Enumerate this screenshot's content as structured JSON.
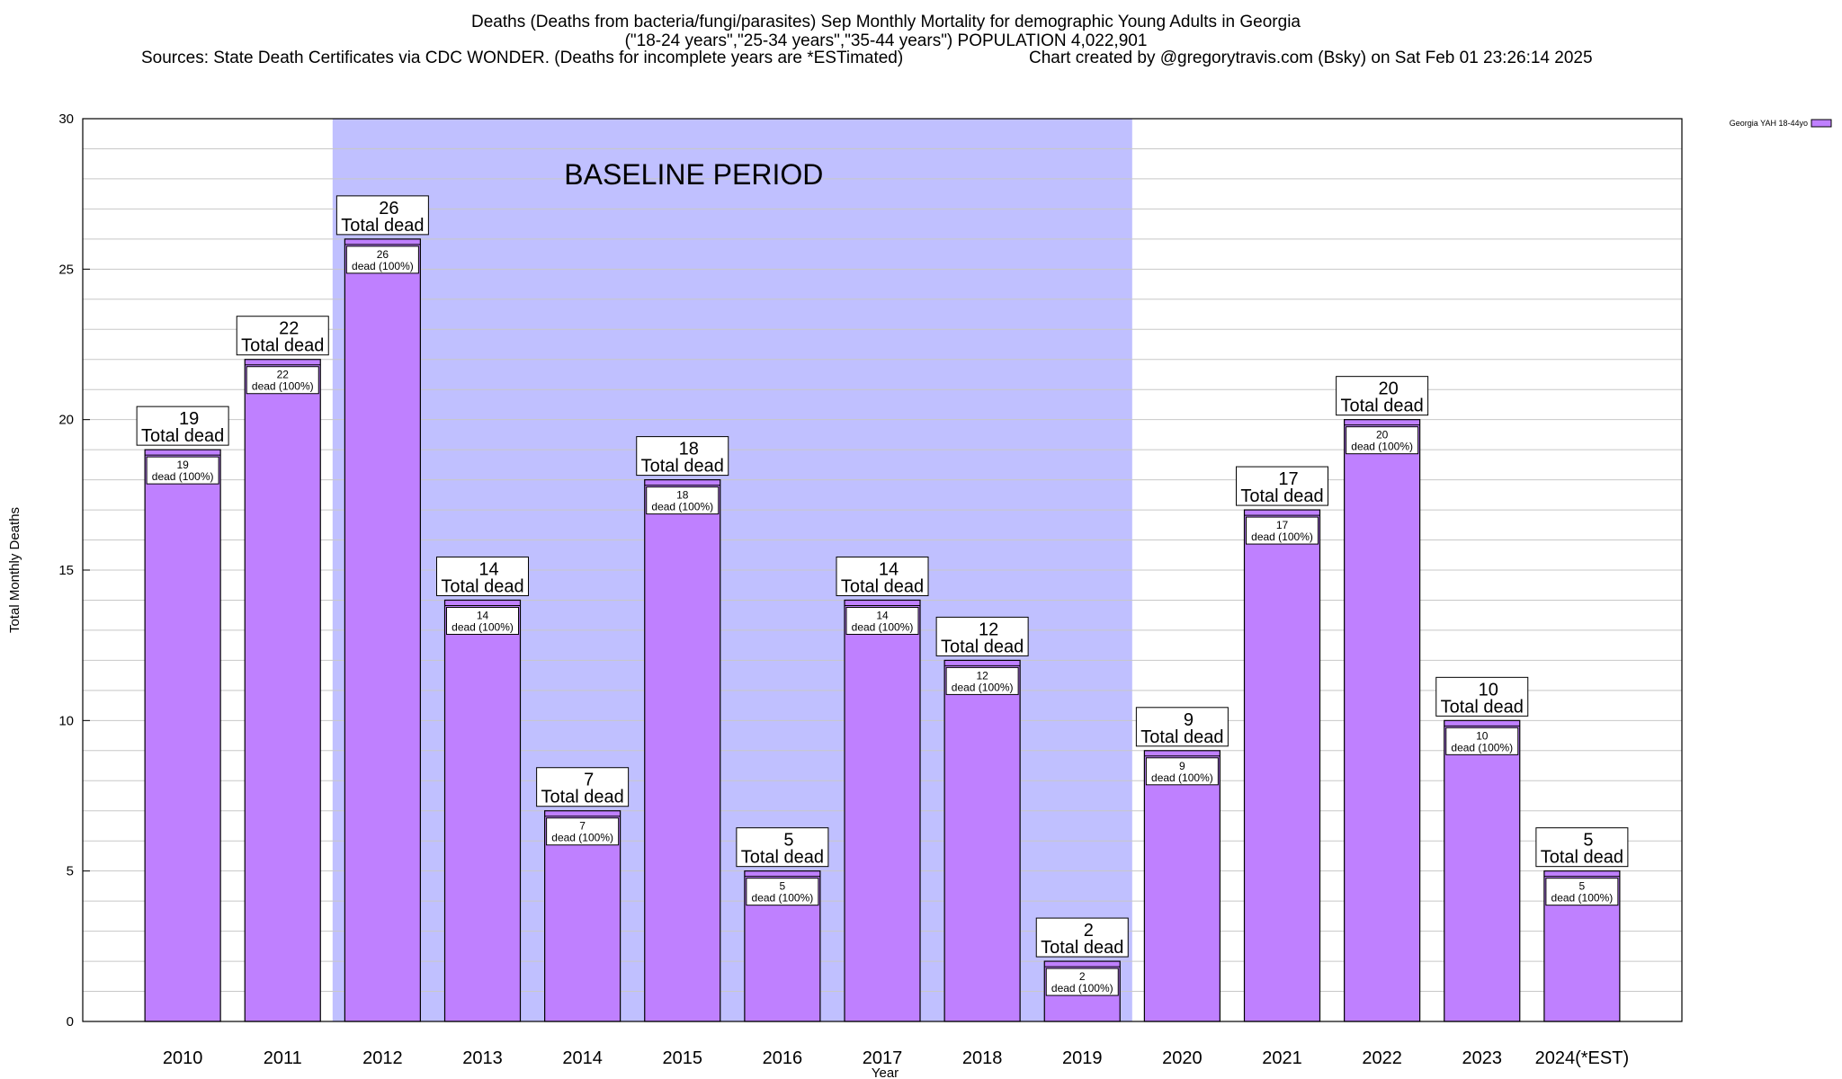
{
  "chart_data": {
    "type": "bar",
    "title_line1": "Deaths (Deaths from bacteria/fungi/parasites) Sep Monthly Mortality for demographic Young Adults in Georgia",
    "title_line2": "(\"18-24 years\",\"25-34 years\",\"35-44 years\") POPULATION 4,022,901",
    "source_text": "Sources: State Death Certificates via CDC WONDER. (Deaths for incomplete years are *ESTimated)",
    "credit_text": "Chart created by @gregorytravis.com (Bsky) on Sat Feb 01 23:26:14 2025",
    "xlabel": "Year",
    "ylabel": "Total Monthly Deaths",
    "ylim": [
      0,
      30
    ],
    "yticks": [
      0,
      5,
      10,
      15,
      20,
      25,
      30
    ],
    "minor_grid_step": 1,
    "grid": true,
    "legend_position": "top-right",
    "categories": [
      "2010",
      "2011",
      "2012",
      "2013",
      "2014",
      "2015",
      "2016",
      "2017",
      "2018",
      "2019",
      "2020",
      "2021",
      "2022",
      "2023",
      "2024(*EST)"
    ],
    "series": [
      {
        "name": "Georgia YAH 18-44yo",
        "values": [
          19,
          22,
          26,
          14,
          7,
          18,
          5,
          14,
          12,
          2,
          9,
          17,
          20,
          10,
          5
        ]
      }
    ],
    "baseline": {
      "label": "BASELINE PERIOD",
      "from": "2012",
      "to": "2019"
    },
    "total_label_suffix": "Total dead",
    "inner_label_suffix": "dead (100%)",
    "colors": {
      "bar": "#bf80ff",
      "baseline": "#c0c0ff",
      "grid": "#c8c8c8"
    }
  }
}
